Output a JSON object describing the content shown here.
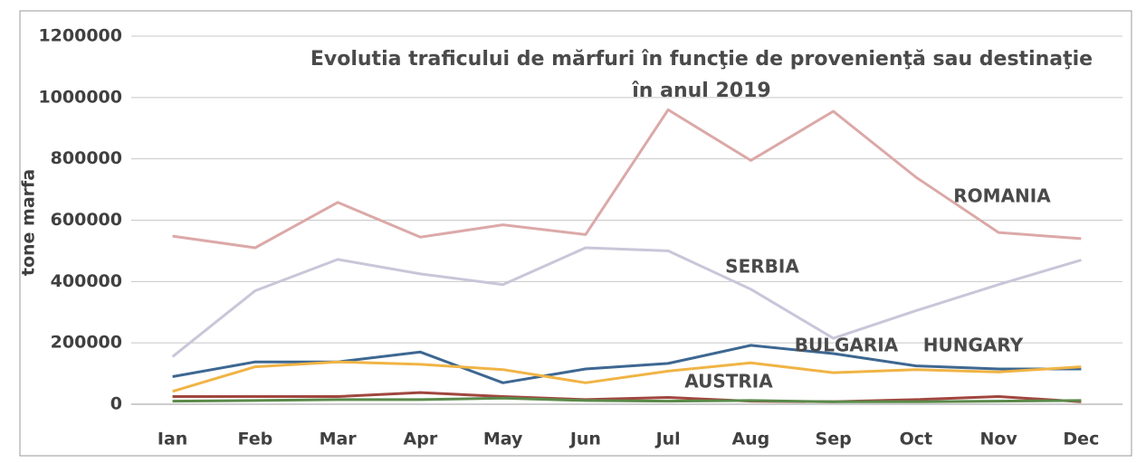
{
  "chart_data": {
    "type": "line",
    "title": [
      "Evolutia traficului de mărfuri în funcţie de provenienţă sau destinaţie",
      "în anul 2019"
    ],
    "y_label": "tone marfa",
    "categories": [
      "Ian",
      "Feb",
      "Mar",
      "Apr",
      "May",
      "Jun",
      "Jul",
      "Aug",
      "Sep",
      "Oct",
      "Nov",
      "Dec"
    ],
    "ylim": [
      0,
      1200000
    ],
    "yticks": [
      0,
      200000,
      400000,
      600000,
      800000,
      1000000,
      1200000
    ],
    "grid": true,
    "series": [
      {
        "name": "ROMANIA",
        "color": "#dba9a8",
        "values": [
          548000,
          510000,
          658000,
          545000,
          585000,
          553000,
          960000,
          795000,
          955000,
          740000,
          560000,
          540000
        ]
      },
      {
        "name": "SERBIA",
        "color": "#c9c6d9",
        "values": [
          155000,
          370000,
          472000,
          425000,
          390000,
          510000,
          500000,
          375000,
          215000,
          305000,
          390000,
          470000
        ]
      },
      {
        "name": "BULGARIA",
        "color": "#3d6791",
        "values": [
          90000,
          138000,
          138000,
          170000,
          70000,
          115000,
          133000,
          192000,
          165000,
          125000,
          115000,
          115000
        ]
      },
      {
        "name": "HUNGARY",
        "color": "#f0b445",
        "values": [
          42000,
          122000,
          138000,
          130000,
          113000,
          70000,
          108000,
          135000,
          103000,
          113000,
          105000,
          122000
        ]
      },
      {
        "name": "AUSTRIA",
        "color": "#a0463e",
        "values": [
          25000,
          25000,
          25000,
          38000,
          25000,
          15000,
          22000,
          10000,
          8000,
          15000,
          25000,
          8000
        ]
      },
      {
        "color": "#5a8a4a",
        "values": [
          10000,
          12000,
          15000,
          15000,
          20000,
          12000,
          10000,
          12000,
          8000,
          8000,
          10000,
          12000
        ]
      }
    ]
  }
}
